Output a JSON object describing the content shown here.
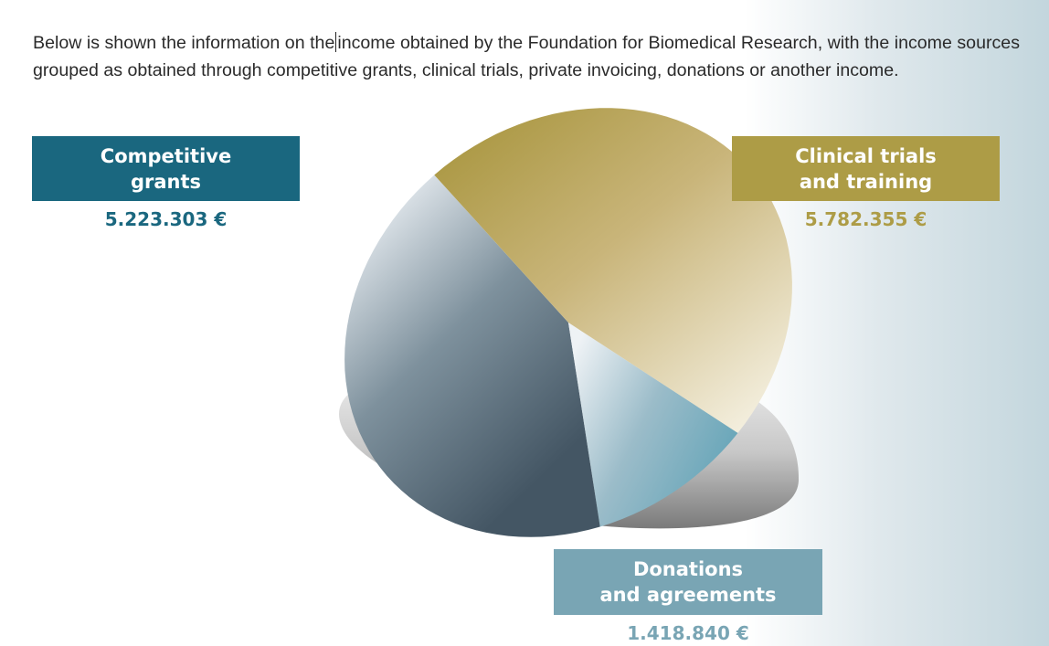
{
  "intro": {
    "part1": "Below is shown the information on the",
    "part2": "income obtained by the Foundation for Biomedical Research, with the income sources grouped as obtained through competitive grants, clinical trials, private invoicing, donations or another income."
  },
  "colors": {
    "competitive_grants": "#1a677f",
    "clinical_trials": "#ad9c46",
    "donations": "#79a5b4"
  },
  "chart_data": {
    "type": "pie",
    "title": "",
    "slices": [
      {
        "label": "Competitive grants",
        "value": 5223303,
        "display": "5.223.303 €"
      },
      {
        "label": "Clinical trials and training",
        "value": 5782355,
        "display": "5.782.355 €"
      },
      {
        "label": "Donations and agreements",
        "value": 1418840,
        "display": "1.418.840 €"
      }
    ]
  },
  "labels": {
    "grants_line1": "Competitive",
    "grants_line2": "grants",
    "trials_line1": "Clinical trials",
    "trials_line2": "and training",
    "donations_line1": "Donations",
    "donations_line2": "and agreements"
  }
}
